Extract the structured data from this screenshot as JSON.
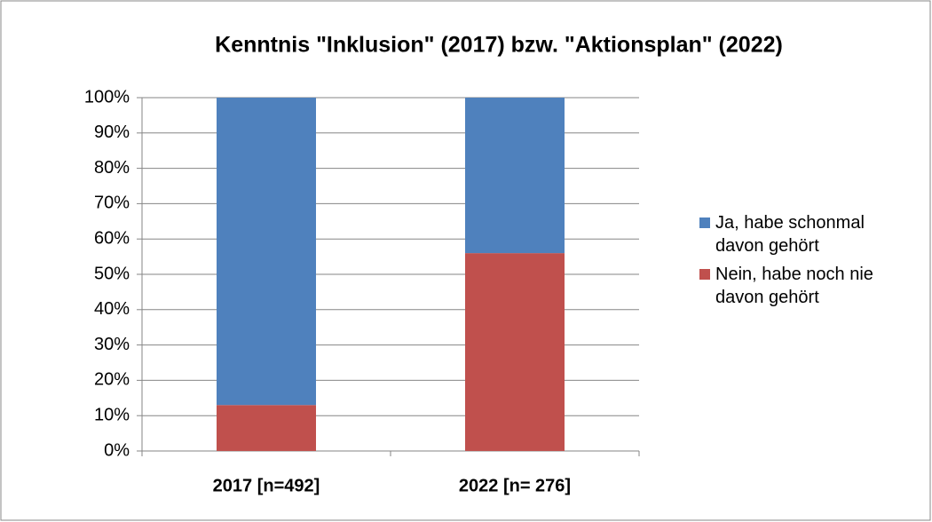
{
  "chart_data": {
    "type": "stacked_bar",
    "title": "Kenntnis \"Inklusion\" (2017) bzw. \"Aktionsplan\" (2022)",
    "categories": [
      "2017 [n=492]",
      "2022 [n= 276]"
    ],
    "series": [
      {
        "name": "Ja, habe schonmal davon gehört",
        "color": "#4f81bd",
        "values": [
          87,
          44
        ]
      },
      {
        "name": "Nein, habe noch nie davon gehört",
        "color": "#c0504d",
        "values": [
          13,
          56
        ]
      }
    ],
    "ylim": [
      0,
      100
    ],
    "yticks": [
      {
        "value": 0,
        "label": "0%"
      },
      {
        "value": 10,
        "label": "10%"
      },
      {
        "value": 20,
        "label": "20%"
      },
      {
        "value": 30,
        "label": "30%"
      },
      {
        "value": 40,
        "label": "40%"
      },
      {
        "value": 50,
        "label": "50%"
      },
      {
        "value": 60,
        "label": "60%"
      },
      {
        "value": 70,
        "label": "70%"
      },
      {
        "value": 80,
        "label": "80%"
      },
      {
        "value": 90,
        "label": "90%"
      },
      {
        "value": 100,
        "label": "100%"
      }
    ],
    "grid": true,
    "legend": "right"
  }
}
